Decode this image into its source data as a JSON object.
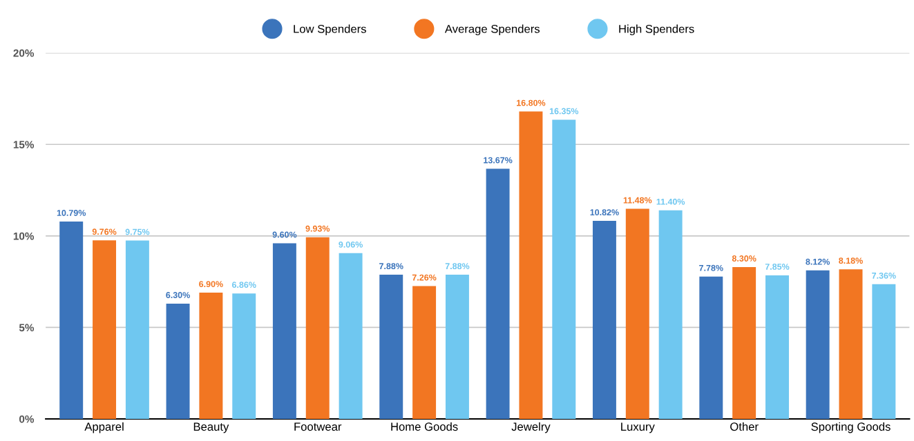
{
  "chart_data": {
    "type": "bar",
    "categories": [
      "Apparel",
      "Beauty",
      "Footwear",
      "Home Goods",
      "Jewelry",
      "Luxury",
      "Other",
      "Sporting Goods"
    ],
    "series": [
      {
        "name": "Low Spenders",
        "color": "#3b74bb",
        "values": [
          10.79,
          6.3,
          9.6,
          7.88,
          13.67,
          10.82,
          7.78,
          8.12
        ],
        "value_labels": [
          "10.79%",
          "6.30%",
          "9.60%",
          "7.88%",
          "13.67%",
          "10.82%",
          "7.78%",
          "8.12%"
        ]
      },
      {
        "name": "Average Spenders",
        "color": "#f27622",
        "values": [
          9.76,
          6.9,
          9.93,
          7.26,
          16.8,
          11.48,
          8.3,
          8.18
        ],
        "value_labels": [
          "9.76%",
          "6.90%",
          "9.93%",
          "7.26%",
          "16.80%",
          "11.48%",
          "8.30%",
          "8.18%"
        ]
      },
      {
        "name": "High Spenders",
        "color": "#6fc7f0",
        "values": [
          9.75,
          6.86,
          9.06,
          7.88,
          16.35,
          11.4,
          7.85,
          7.36
        ],
        "value_labels": [
          "9.75%",
          "6.86%",
          "9.06%",
          "7.88%",
          "16.35%",
          "11.40%",
          "7.85%",
          "7.36%"
        ]
      }
    ],
    "ylim": [
      0,
      20
    ],
    "yticks": [
      {
        "value": 0,
        "label": "0%"
      },
      {
        "value": 5,
        "label": "5%"
      },
      {
        "value": 10,
        "label": "10%"
      },
      {
        "value": 15,
        "label": "15%"
      },
      {
        "value": 20,
        "label": "20%"
      }
    ],
    "grid": "y",
    "legend": "top"
  }
}
